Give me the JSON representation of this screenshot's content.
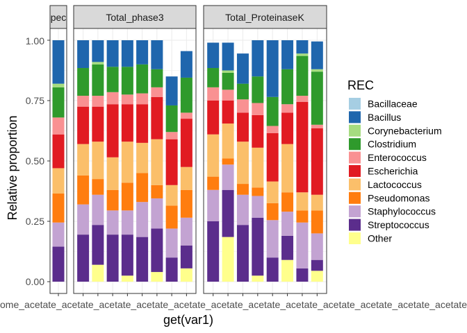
{
  "chart_data": {
    "type": "bar",
    "stacked": true,
    "xlabel": "get(var1)",
    "ylabel": "Relative proportion",
    "ylim": [
      0,
      1
    ],
    "y_ticks": [
      "0.00",
      "0.25",
      "0.50",
      "0.75",
      "1.00"
    ],
    "legend": {
      "title": "REC",
      "placement": "right",
      "entries": [
        {
          "name": "Bacillaceae",
          "color": "#a6cee3"
        },
        {
          "name": "Bacillus",
          "color": "#1f66ad"
        },
        {
          "name": "Corynebacterium",
          "color": "#a6dc80"
        },
        {
          "name": "Clostridium",
          "color": "#2f9a2c"
        },
        {
          "name": "Enterococcus",
          "color": "#f99192"
        },
        {
          "name": "Escherichia",
          "color": "#e11b22"
        },
        {
          "name": "Lactococcus",
          "color": "#fbbf6a"
        },
        {
          "name": "Pseudomonas",
          "color": "#ff7d0f"
        },
        {
          "name": "Staphylococcus",
          "color": "#c3a3d2"
        },
        {
          "name": "Streptococcus",
          "color": "#5b2d8c"
        },
        {
          "name": "Other",
          "color": "#ffff8c"
        }
      ]
    },
    "stack_order_bottom_to_top": [
      "Other",
      "Streptococcus",
      "Staphylococcus",
      "Pseudomonas",
      "Lactococcus",
      "Escherichia",
      "Enterococcus",
      "Clostridium",
      "Corynebacterium",
      "Bacillus",
      "Bacillaceae"
    ],
    "x_tick_labels_overlapping": "ome_acetate_acetate_acetate_acetate_acetate_acetate_acetate_acetate_acetate_acetate_acetate_acetate",
    "facets": [
      {
        "title": "pec",
        "bars": [
          {
            "Other": 0,
            "Streptococcus": 0.145,
            "Staphylococcus": 0.1,
            "Pseudomonas": 0.12,
            "Lactococcus": 0.105,
            "Escherichia": 0.14,
            "Enterococcus": 0.07,
            "Clostridium": 0.125,
            "Corynebacterium": 0.015,
            "Bacillus": 0.18,
            "Bacillaceae": 0
          }
        ]
      },
      {
        "title": "Total_phase3",
        "bars": [
          {
            "Other": 0,
            "Streptococcus": 0.195,
            "Staphylococcus": 0.125,
            "Pseudomonas": 0.12,
            "Lactococcus": 0.13,
            "Escherichia": 0.155,
            "Enterococcus": 0.045,
            "Clostridium": 0.115,
            "Corynebacterium": 0,
            "Bacillus": 0.115,
            "Bacillaceae": 0
          },
          {
            "Other": 0.07,
            "Streptococcus": 0.165,
            "Staphylococcus": 0.125,
            "Pseudomonas": 0.065,
            "Lactococcus": 0.155,
            "Escherichia": 0.145,
            "Enterococcus": 0.045,
            "Clostridium": 0.13,
            "Corynebacterium": 0.01,
            "Bacillus": 0.09,
            "Bacillaceae": 0
          },
          {
            "Other": 0,
            "Streptococcus": 0.195,
            "Staphylococcus": 0.1,
            "Pseudomonas": 0.085,
            "Lactococcus": 0.135,
            "Escherichia": 0.22,
            "Enterococcus": 0.05,
            "Clostridium": 0.105,
            "Corynebacterium": 0,
            "Bacillus": 0.11,
            "Bacillaceae": 0
          },
          {
            "Other": 0.025,
            "Streptococcus": 0.17,
            "Staphylococcus": 0.1,
            "Pseudomonas": 0.115,
            "Lactococcus": 0.17,
            "Escherichia": 0.155,
            "Enterococcus": 0.04,
            "Clostridium": 0.115,
            "Corynebacterium": 0,
            "Bacillus": 0.11,
            "Bacillaceae": 0
          },
          {
            "Other": 0,
            "Streptococcus": 0.185,
            "Staphylococcus": 0.145,
            "Pseudomonas": 0.12,
            "Lactococcus": 0.125,
            "Escherichia": 0.16,
            "Enterococcus": 0.045,
            "Clostridium": 0.12,
            "Corynebacterium": 0,
            "Bacillus": 0.1,
            "Bacillaceae": 0
          },
          {
            "Other": 0.04,
            "Streptococcus": 0.18,
            "Staphylococcus": 0.125,
            "Pseudomonas": 0.055,
            "Lactococcus": 0.19,
            "Escherichia": 0.175,
            "Enterococcus": 0.04,
            "Clostridium": 0.075,
            "Corynebacterium": 0,
            "Bacillus": 0.12,
            "Bacillaceae": 0
          },
          {
            "Other": 0,
            "Streptococcus": 0.1,
            "Staphylococcus": 0.12,
            "Pseudomonas": 0.095,
            "Lactococcus": 0.085,
            "Escherichia": 0.19,
            "Enterococcus": 0.03,
            "Clostridium": 0.11,
            "Corynebacterium": 0,
            "Bacillus": 0.12,
            "Bacillaceae": 0
          },
          {
            "Other": 0.055,
            "Streptococcus": 0.095,
            "Staphylococcus": 0.115,
            "Pseudomonas": 0.115,
            "Lactococcus": 0.095,
            "Escherichia": 0.2,
            "Enterococcus": 0.025,
            "Clostridium": 0.145,
            "Corynebacterium": 0,
            "Bacillus": 0.11,
            "Bacillaceae": 0
          }
        ]
      },
      {
        "title": "Total_ProteinaseK",
        "bars": [
          {
            "Other": 0,
            "Streptococcus": 0.25,
            "Staphylococcus": 0.13,
            "Pseudomonas": 0.055,
            "Lactococcus": 0.175,
            "Escherichia": 0.14,
            "Enterococcus": 0.055,
            "Clostridium": 0.08,
            "Corynebacterium": 0,
            "Bacillus": 0.105,
            "Bacillaceae": 0
          },
          {
            "Other": 0.185,
            "Streptococcus": 0.195,
            "Staphylococcus": 0.105,
            "Pseudomonas": 0.025,
            "Lactococcus": 0.145,
            "Escherichia": 0.095,
            "Enterococcus": 0.045,
            "Clostridium": 0.07,
            "Corynebacterium": 0.01,
            "Bacillus": 0.115,
            "Bacillaceae": 0
          },
          {
            "Other": 0,
            "Streptococcus": 0.235,
            "Staphylococcus": 0.125,
            "Pseudomonas": 0.045,
            "Lactococcus": 0.175,
            "Escherichia": 0.12,
            "Enterococcus": 0.055,
            "Clostridium": 0.065,
            "Corynebacterium": 0,
            "Bacillus": 0.125,
            "Bacillaceae": 0
          },
          {
            "Other": 0.025,
            "Streptococcus": 0.24,
            "Staphylococcus": 0.09,
            "Pseudomonas": 0.035,
            "Lactococcus": 0.165,
            "Escherichia": 0.135,
            "Enterococcus": 0.05,
            "Clostridium": 0.11,
            "Corynebacterium": 0,
            "Bacillus": 0.15,
            "Bacillaceae": 0
          },
          {
            "Other": 0,
            "Streptococcus": 0.1,
            "Staphylococcus": 0.155,
            "Pseudomonas": 0.07,
            "Lactococcus": 0.09,
            "Escherichia": 0.2,
            "Enterococcus": 0.03,
            "Clostridium": 0.12,
            "Corynebacterium": 0,
            "Bacillus": 0.235,
            "Bacillaceae": 0
          },
          {
            "Other": 0.09,
            "Streptococcus": 0.1,
            "Staphylococcus": 0.1,
            "Pseudomonas": 0.08,
            "Lactococcus": 0.2,
            "Escherichia": 0.13,
            "Enterococcus": 0.035,
            "Clostridium": 0.145,
            "Corynebacterium": 0,
            "Bacillus": 0.12,
            "Bacillaceae": 0
          },
          {
            "Other": 0,
            "Streptococcus": 0.055,
            "Staphylococcus": 0.19,
            "Pseudomonas": 0.05,
            "Lactococcus": 0.075,
            "Escherichia": 0.375,
            "Enterococcus": 0.025,
            "Clostridium": 0.165,
            "Corynebacterium": 0.01,
            "Bacillus": 0.055,
            "Bacillaceae": 0
          },
          {
            "Other": 0.045,
            "Streptococcus": 0.045,
            "Staphylococcus": 0.11,
            "Pseudomonas": 0.095,
            "Lactococcus": 0.065,
            "Escherichia": 0.275,
            "Enterococcus": 0.015,
            "Clostridium": 0.22,
            "Corynebacterium": 0.01,
            "Bacillus": 0.115,
            "Bacillaceae": 0
          }
        ]
      }
    ]
  }
}
